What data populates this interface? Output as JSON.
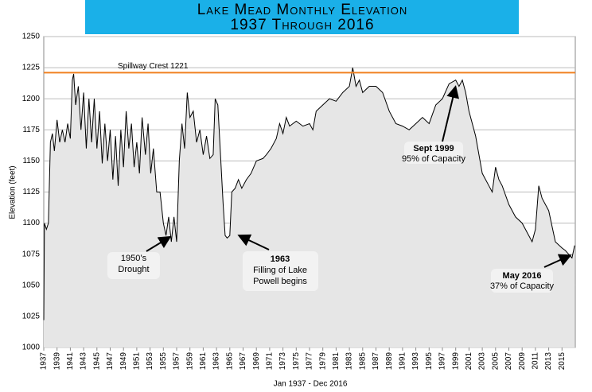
{
  "chart_data": {
    "type": "area",
    "title": "Lake Mead Monthly Elevation",
    "subtitle": "1937 Through 2016",
    "y_label": "Elevation (feet)",
    "x_label": "Jan 1937 - Dec 2016",
    "color": "#e6e6e6",
    "line_color": "#000000",
    "xlim": [
      1937,
      2017
    ],
    "xticks": [
      1937,
      1939,
      1941,
      1943,
      1945,
      1947,
      1949,
      1951,
      1953,
      1955,
      1957,
      1959,
      1961,
      1963,
      1965,
      1967,
      1969,
      1971,
      1973,
      1975,
      1977,
      1979,
      1981,
      1983,
      1985,
      1987,
      1989,
      1991,
      1993,
      1995,
      1997,
      1999,
      2001,
      2003,
      2005,
      2007,
      2009,
      2011,
      2013,
      2015
    ],
    "ylim": [
      1000,
      1250
    ],
    "yticks": [
      1000,
      1025,
      1050,
      1075,
      1100,
      1125,
      1150,
      1175,
      1200,
      1225,
      1250
    ],
    "grid": true,
    "reference_line": {
      "label": "Spillway Crest 1221",
      "value": 1221,
      "color": "#f08020"
    },
    "x": [
      1937.0,
      1937.1,
      1937.4,
      1937.7,
      1938.0,
      1938.3,
      1938.6,
      1939.0,
      1939.4,
      1939.8,
      1940.2,
      1940.6,
      1941.0,
      1941.3,
      1941.5,
      1941.8,
      1942.2,
      1942.6,
      1943.0,
      1943.4,
      1943.8,
      1944.2,
      1944.6,
      1945.0,
      1945.4,
      1945.8,
      1946.2,
      1946.6,
      1947.0,
      1947.4,
      1947.8,
      1948.2,
      1948.6,
      1949.0,
      1949.4,
      1949.8,
      1950.2,
      1950.6,
      1951.0,
      1951.4,
      1951.8,
      1952.3,
      1952.7,
      1953.1,
      1953.5,
      1954.0,
      1954.5,
      1955.0,
      1955.4,
      1955.8,
      1956.2,
      1956.6,
      1957.0,
      1957.4,
      1957.8,
      1958.2,
      1958.6,
      1959.0,
      1959.5,
      1960.0,
      1960.5,
      1961.0,
      1961.5,
      1962.0,
      1962.5,
      1962.8,
      1963.2,
      1963.6,
      1964.0,
      1964.3,
      1964.6,
      1965.0,
      1965.3,
      1965.8,
      1966.3,
      1966.8,
      1967.5,
      1968.2,
      1969.0,
      1970.0,
      1970.5,
      1971.2,
      1972.0,
      1972.5,
      1973.0,
      1973.5,
      1974.0,
      1975.0,
      1976.0,
      1977.0,
      1977.5,
      1978.0,
      1979.0,
      1980.0,
      1981.0,
      1982.0,
      1983.0,
      1983.5,
      1984.0,
      1984.5,
      1985.0,
      1986.0,
      1987.0,
      1988.0,
      1989.0,
      1990.0,
      1991.0,
      1992.0,
      1993.0,
      1994.0,
      1995.0,
      1996.0,
      1997.0,
      1998.0,
      1999.0,
      1999.5,
      2000.0,
      2000.5,
      2001.0,
      2002.0,
      2003.0,
      2004.0,
      2004.5,
      2005.0,
      2005.5,
      2006.0,
      2007.0,
      2008.0,
      2009.0,
      2010.0,
      2010.5,
      2011.0,
      2011.5,
      2012.0,
      2012.5,
      2013.0,
      2014.0,
      2015.0,
      2015.5,
      2016.0,
      2016.5,
      2016.9
    ],
    "values": [
      1022,
      1100,
      1095,
      1100,
      1165,
      1172,
      1158,
      1183,
      1165,
      1175,
      1165,
      1180,
      1168,
      1215,
      1220,
      1195,
      1210,
      1175,
      1205,
      1160,
      1200,
      1165,
      1200,
      1160,
      1190,
      1148,
      1180,
      1150,
      1175,
      1135,
      1170,
      1130,
      1175,
      1145,
      1190,
      1160,
      1180,
      1145,
      1165,
      1140,
      1185,
      1155,
      1180,
      1140,
      1160,
      1125,
      1125,
      1100,
      1090,
      1105,
      1085,
      1105,
      1085,
      1150,
      1180,
      1160,
      1205,
      1185,
      1190,
      1165,
      1175,
      1155,
      1170,
      1152,
      1155,
      1200,
      1195,
      1155,
      1115,
      1090,
      1088,
      1090,
      1125,
      1128,
      1135,
      1128,
      1135,
      1140,
      1150,
      1152,
      1155,
      1160,
      1168,
      1180,
      1172,
      1185,
      1178,
      1182,
      1178,
      1180,
      1175,
      1190,
      1195,
      1200,
      1198,
      1205,
      1210,
      1225,
      1210,
      1215,
      1205,
      1210,
      1210,
      1205,
      1190,
      1180,
      1178,
      1175,
      1180,
      1185,
      1180,
      1195,
      1200,
      1212,
      1215,
      1210,
      1215,
      1205,
      1190,
      1170,
      1140,
      1130,
      1125,
      1145,
      1135,
      1130,
      1115,
      1105,
      1100,
      1090,
      1085,
      1095,
      1130,
      1120,
      1115,
      1110,
      1085,
      1080,
      1078,
      1075,
      1072,
      1082
    ],
    "annotations": [
      {
        "lines": [
          "1950’s",
          "Drought"
        ]
      },
      {
        "lines": [
          "1963",
          "Filling of Lake",
          "Powell begins"
        ]
      },
      {
        "lines": [
          "Sept 1999",
          "95% of Capacity"
        ]
      },
      {
        "lines": [
          "May 2016",
          "37% of Capacity"
        ]
      }
    ]
  }
}
